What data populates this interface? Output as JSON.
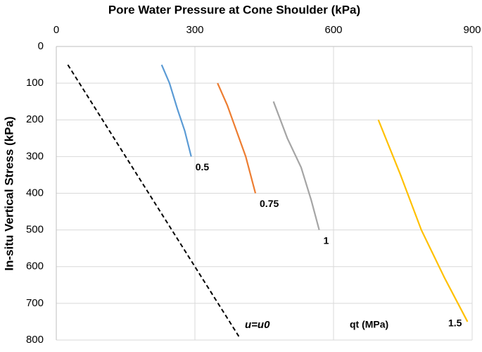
{
  "chart_data": {
    "type": "line",
    "title": "Pore Water Pressure at Cone Shoulder (kPa)",
    "y_label": "In-situ Vertical Stress (kPa)",
    "legend_title": "qt (MPa)",
    "xlim": [
      0,
      900
    ],
    "xticks": [
      0,
      300,
      600,
      900
    ],
    "ylim": [
      800,
      0
    ],
    "yticks": [
      0,
      100,
      200,
      300,
      400,
      500,
      600,
      700,
      800
    ],
    "y_inverted": true,
    "x_axis_position": "top",
    "grid": true,
    "series": [
      {
        "name": "u=u0",
        "color": "#000000",
        "dashed": true,
        "x": [
          25,
          395
        ],
        "values": [
          50,
          790
        ]
      },
      {
        "name": "0.5",
        "color": "#5b9bd5",
        "x": [
          228,
          245,
          262,
          278,
          292
        ],
        "values": [
          50,
          100,
          170,
          230,
          300
        ]
      },
      {
        "name": "0.75",
        "color": "#ed7d31",
        "x": [
          349,
          370,
          390,
          410,
          431
        ],
        "values": [
          100,
          160,
          230,
          300,
          400
        ]
      },
      {
        "name": "1",
        "color": "#a5a5a5",
        "x": [
          470,
          500,
          530,
          552,
          569
        ],
        "values": [
          150,
          250,
          330,
          420,
          500
        ]
      },
      {
        "name": "1.5",
        "color": "#ffc000",
        "x": [
          697,
          745,
          790,
          840,
          890
        ],
        "values": [
          200,
          350,
          500,
          630,
          750
        ]
      }
    ]
  }
}
